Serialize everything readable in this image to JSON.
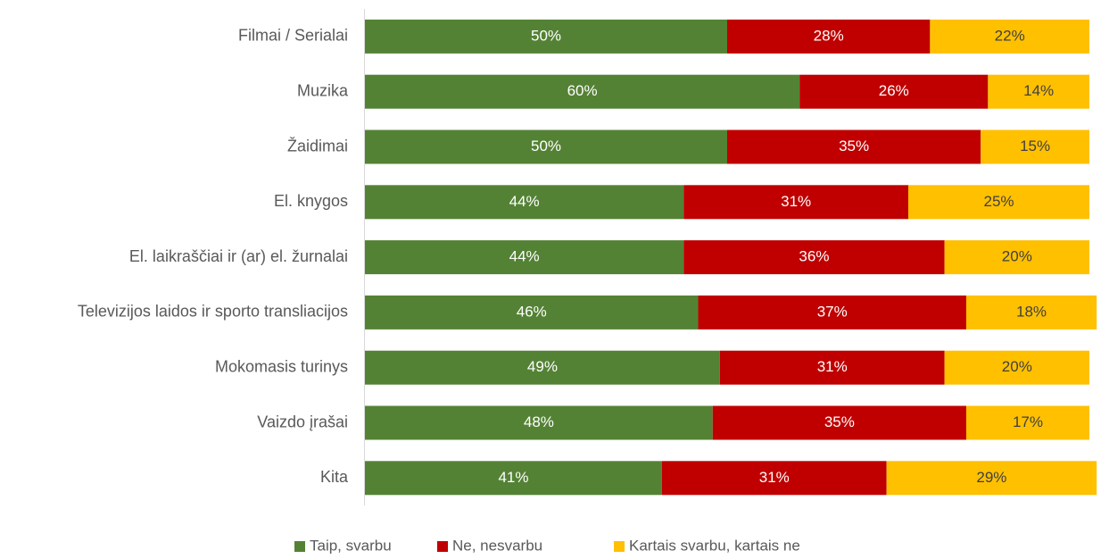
{
  "chart_data": {
    "type": "stacked_bar_horizontal",
    "categories": [
      "Filmai / Serialai",
      "Muzika",
      "Žaidimai",
      "El. knygos",
      "El. laikraščiai ir (ar) el. žurnalai",
      "Televizijos laidos ir sporto transliacijos",
      "Mokomasis turinys",
      "Vaizdo įrašai",
      "Kita"
    ],
    "series": [
      {
        "name": "Taip, svarbu",
        "color": "#548235",
        "values": [
          50,
          60,
          50,
          44,
          44,
          46,
          49,
          48,
          41
        ],
        "value_labels": [
          "50%",
          "60%",
          "50%",
          "44%",
          "44%",
          "46%",
          "49%",
          "48%",
          "41%"
        ]
      },
      {
        "name": "Ne, nesvarbu",
        "color": "#c00000",
        "values": [
          28,
          26,
          35,
          31,
          36,
          37,
          31,
          35,
          31
        ],
        "value_labels": [
          "28%",
          "26%",
          "35%",
          "31%",
          "36%",
          "37%",
          "31%",
          "35%",
          "31%"
        ]
      },
      {
        "name": "Kartais svarbu, kartais ne",
        "color": "#ffc000",
        "values": [
          22,
          14,
          15,
          25,
          20,
          18,
          20,
          17,
          29
        ],
        "value_labels": [
          "22%",
          "14%",
          "15%",
          "25%",
          "20%",
          "18%",
          "20%",
          "17%",
          "29%"
        ]
      }
    ],
    "xlim": [
      0,
      100
    ],
    "legend": "bottom"
  }
}
